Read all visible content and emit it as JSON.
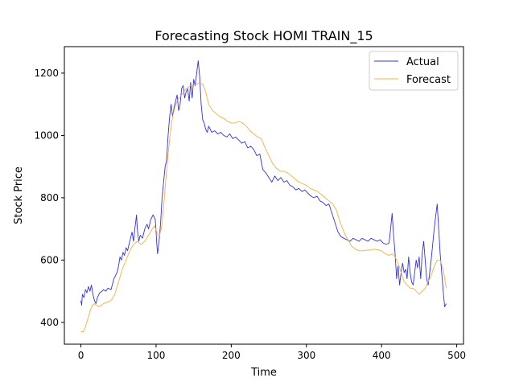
{
  "chart_data": {
    "type": "line",
    "title": "Forecasting Stock HOMI TRAIN_15",
    "xlabel": "Time",
    "ylabel": "Stock Price",
    "xlim": [
      -22,
      509
    ],
    "ylim": [
      330,
      1285
    ],
    "xticks": [
      0,
      100,
      200,
      300,
      400,
      500
    ],
    "yticks": [
      400,
      600,
      800,
      1000,
      1200
    ],
    "grid": false,
    "legend_position": "top-right",
    "series": [
      {
        "name": "Actual",
        "color": "#3333dd",
        "points": [
          [
            0,
            470
          ],
          [
            1,
            455
          ],
          [
            2,
            490
          ],
          [
            4,
            480
          ],
          [
            6,
            505
          ],
          [
            8,
            495
          ],
          [
            10,
            515
          ],
          [
            12,
            500
          ],
          [
            14,
            520
          ],
          [
            16,
            490
          ],
          [
            18,
            470
          ],
          [
            20,
            460
          ],
          [
            22,
            480
          ],
          [
            25,
            495
          ],
          [
            28,
            500
          ],
          [
            30,
            505
          ],
          [
            33,
            500
          ],
          [
            36,
            510
          ],
          [
            40,
            505
          ],
          [
            44,
            540
          ],
          [
            48,
            560
          ],
          [
            50,
            580
          ],
          [
            52,
            610
          ],
          [
            54,
            600
          ],
          [
            56,
            625
          ],
          [
            58,
            615
          ],
          [
            60,
            640
          ],
          [
            62,
            630
          ],
          [
            64,
            650
          ],
          [
            66,
            670
          ],
          [
            68,
            690
          ],
          [
            70,
            660
          ],
          [
            72,
            705
          ],
          [
            74,
            745
          ],
          [
            75,
            700
          ],
          [
            77,
            660
          ],
          [
            79,
            680
          ],
          [
            82,
            670
          ],
          [
            85,
            700
          ],
          [
            88,
            715
          ],
          [
            90,
            700
          ],
          [
            93,
            730
          ],
          [
            96,
            745
          ],
          [
            99,
            730
          ],
          [
            101,
            650
          ],
          [
            102,
            620
          ],
          [
            104,
            660
          ],
          [
            106,
            720
          ],
          [
            108,
            800
          ],
          [
            110,
            850
          ],
          [
            112,
            900
          ],
          [
            114,
            920
          ],
          [
            116,
            1000
          ],
          [
            118,
            1060
          ],
          [
            120,
            1100
          ],
          [
            122,
            1060
          ],
          [
            124,
            1090
          ],
          [
            126,
            1110
          ],
          [
            128,
            1130
          ],
          [
            130,
            1080
          ],
          [
            132,
            1100
          ],
          [
            134,
            1150
          ],
          [
            136,
            1160
          ],
          [
            138,
            1120
          ],
          [
            140,
            1140
          ],
          [
            142,
            1150
          ],
          [
            144,
            1110
          ],
          [
            146,
            1170
          ],
          [
            148,
            1120
          ],
          [
            150,
            1180
          ],
          [
            152,
            1160
          ],
          [
            154,
            1200
          ],
          [
            156,
            1240
          ],
          [
            158,
            1190
          ],
          [
            160,
            1100
          ],
          [
            162,
            1050
          ],
          [
            164,
            1040
          ],
          [
            166,
            1020
          ],
          [
            168,
            1010
          ],
          [
            170,
            1030
          ],
          [
            174,
            1010
          ],
          [
            178,
            1015
          ],
          [
            182,
            1005
          ],
          [
            186,
            1010
          ],
          [
            190,
            1000
          ],
          [
            194,
            995
          ],
          [
            198,
            1005
          ],
          [
            202,
            990
          ],
          [
            206,
            995
          ],
          [
            210,
            985
          ],
          [
            214,
            975
          ],
          [
            218,
            980
          ],
          [
            222,
            960
          ],
          [
            226,
            965
          ],
          [
            230,
            955
          ],
          [
            234,
            935
          ],
          [
            238,
            940
          ],
          [
            242,
            890
          ],
          [
            246,
            880
          ],
          [
            250,
            865
          ],
          [
            254,
            850
          ],
          [
            258,
            870
          ],
          [
            262,
            855
          ],
          [
            266,
            865
          ],
          [
            270,
            850
          ],
          [
            274,
            855
          ],
          [
            278,
            840
          ],
          [
            282,
            835
          ],
          [
            286,
            825
          ],
          [
            290,
            830
          ],
          [
            294,
            820
          ],
          [
            298,
            825
          ],
          [
            302,
            815
          ],
          [
            306,
            805
          ],
          [
            310,
            800
          ],
          [
            314,
            805
          ],
          [
            318,
            790
          ],
          [
            322,
            785
          ],
          [
            326,
            775
          ],
          [
            330,
            780
          ],
          [
            334,
            750
          ],
          [
            338,
            720
          ],
          [
            342,
            690
          ],
          [
            346,
            675
          ],
          [
            350,
            670
          ],
          [
            354,
            665
          ],
          [
            358,
            660
          ],
          [
            362,
            670
          ],
          [
            366,
            665
          ],
          [
            370,
            660
          ],
          [
            374,
            670
          ],
          [
            378,
            665
          ],
          [
            382,
            660
          ],
          [
            386,
            670
          ],
          [
            390,
            665
          ],
          [
            394,
            660
          ],
          [
            398,
            665
          ],
          [
            402,
            655
          ],
          [
            406,
            650
          ],
          [
            410,
            655
          ],
          [
            412,
            700
          ],
          [
            414,
            750
          ],
          [
            416,
            680
          ],
          [
            418,
            620
          ],
          [
            420,
            540
          ],
          [
            422,
            580
          ],
          [
            424,
            520
          ],
          [
            426,
            560
          ],
          [
            428,
            590
          ],
          [
            430,
            560
          ],
          [
            432,
            570
          ],
          [
            434,
            540
          ],
          [
            436,
            610
          ],
          [
            438,
            560
          ],
          [
            440,
            530
          ],
          [
            442,
            520
          ],
          [
            444,
            560
          ],
          [
            446,
            600
          ],
          [
            448,
            575
          ],
          [
            450,
            610
          ],
          [
            452,
            540
          ],
          [
            454,
            620
          ],
          [
            456,
            660
          ],
          [
            458,
            600
          ],
          [
            460,
            540
          ],
          [
            462,
            520
          ],
          [
            464,
            560
          ],
          [
            466,
            600
          ],
          [
            468,
            650
          ],
          [
            470,
            700
          ],
          [
            472,
            740
          ],
          [
            474,
            780
          ],
          [
            476,
            700
          ],
          [
            478,
            620
          ],
          [
            480,
            560
          ],
          [
            482,
            500
          ],
          [
            484,
            450
          ],
          [
            486,
            460
          ]
        ]
      },
      {
        "name": "Forecast",
        "color": "#f5b041",
        "points": [
          [
            0,
            370
          ],
          [
            3,
            370
          ],
          [
            6,
            385
          ],
          [
            9,
            410
          ],
          [
            12,
            435
          ],
          [
            15,
            455
          ],
          [
            18,
            460
          ],
          [
            21,
            455
          ],
          [
            24,
            450
          ],
          [
            27,
            455
          ],
          [
            30,
            460
          ],
          [
            35,
            465
          ],
          [
            40,
            470
          ],
          [
            45,
            490
          ],
          [
            50,
            530
          ],
          [
            55,
            570
          ],
          [
            60,
            600
          ],
          [
            65,
            630
          ],
          [
            70,
            650
          ],
          [
            75,
            660
          ],
          [
            80,
            650
          ],
          [
            85,
            660
          ],
          [
            90,
            680
          ],
          [
            95,
            700
          ],
          [
            98,
            710
          ],
          [
            101,
            690
          ],
          [
            104,
            675
          ],
          [
            107,
            700
          ],
          [
            110,
            770
          ],
          [
            113,
            860
          ],
          [
            116,
            940
          ],
          [
            119,
            1010
          ],
          [
            122,
            1060
          ],
          [
            125,
            1090
          ],
          [
            128,
            1110
          ],
          [
            131,
            1120
          ],
          [
            134,
            1130
          ],
          [
            137,
            1140
          ],
          [
            140,
            1150
          ],
          [
            143,
            1155
          ],
          [
            146,
            1160
          ],
          [
            150,
            1160
          ],
          [
            154,
            1165
          ],
          [
            158,
            1170
          ],
          [
            162,
            1165
          ],
          [
            166,
            1140
          ],
          [
            170,
            1100
          ],
          [
            175,
            1080
          ],
          [
            180,
            1070
          ],
          [
            185,
            1060
          ],
          [
            190,
            1055
          ],
          [
            195,
            1045
          ],
          [
            200,
            1040
          ],
          [
            205,
            1040
          ],
          [
            210,
            1045
          ],
          [
            215,
            1040
          ],
          [
            220,
            1030
          ],
          [
            225,
            1015
          ],
          [
            230,
            1005
          ],
          [
            235,
            995
          ],
          [
            240,
            990
          ],
          [
            245,
            960
          ],
          [
            250,
            935
          ],
          [
            255,
            910
          ],
          [
            260,
            895
          ],
          [
            265,
            885
          ],
          [
            270,
            885
          ],
          [
            275,
            880
          ],
          [
            280,
            870
          ],
          [
            285,
            860
          ],
          [
            290,
            850
          ],
          [
            295,
            845
          ],
          [
            300,
            840
          ],
          [
            305,
            830
          ],
          [
            310,
            825
          ],
          [
            315,
            820
          ],
          [
            320,
            810
          ],
          [
            325,
            800
          ],
          [
            330,
            790
          ],
          [
            335,
            780
          ],
          [
            340,
            760
          ],
          [
            345,
            720
          ],
          [
            350,
            690
          ],
          [
            355,
            665
          ],
          [
            360,
            645
          ],
          [
            365,
            635
          ],
          [
            370,
            630
          ],
          [
            375,
            630
          ],
          [
            380,
            632
          ],
          [
            385,
            632
          ],
          [
            390,
            635
          ],
          [
            395,
            633
          ],
          [
            400,
            630
          ],
          [
            405,
            620
          ],
          [
            410,
            615
          ],
          [
            414,
            620
          ],
          [
            418,
            610
          ],
          [
            422,
            590
          ],
          [
            426,
            560
          ],
          [
            430,
            530
          ],
          [
            434,
            520
          ],
          [
            438,
            510
          ],
          [
            442,
            510
          ],
          [
            446,
            500
          ],
          [
            450,
            490
          ],
          [
            454,
            500
          ],
          [
            458,
            510
          ],
          [
            462,
            530
          ],
          [
            466,
            550
          ],
          [
            470,
            580
          ],
          [
            474,
            600
          ],
          [
            478,
            600
          ],
          [
            482,
            570
          ],
          [
            486,
            510
          ]
        ]
      }
    ]
  }
}
